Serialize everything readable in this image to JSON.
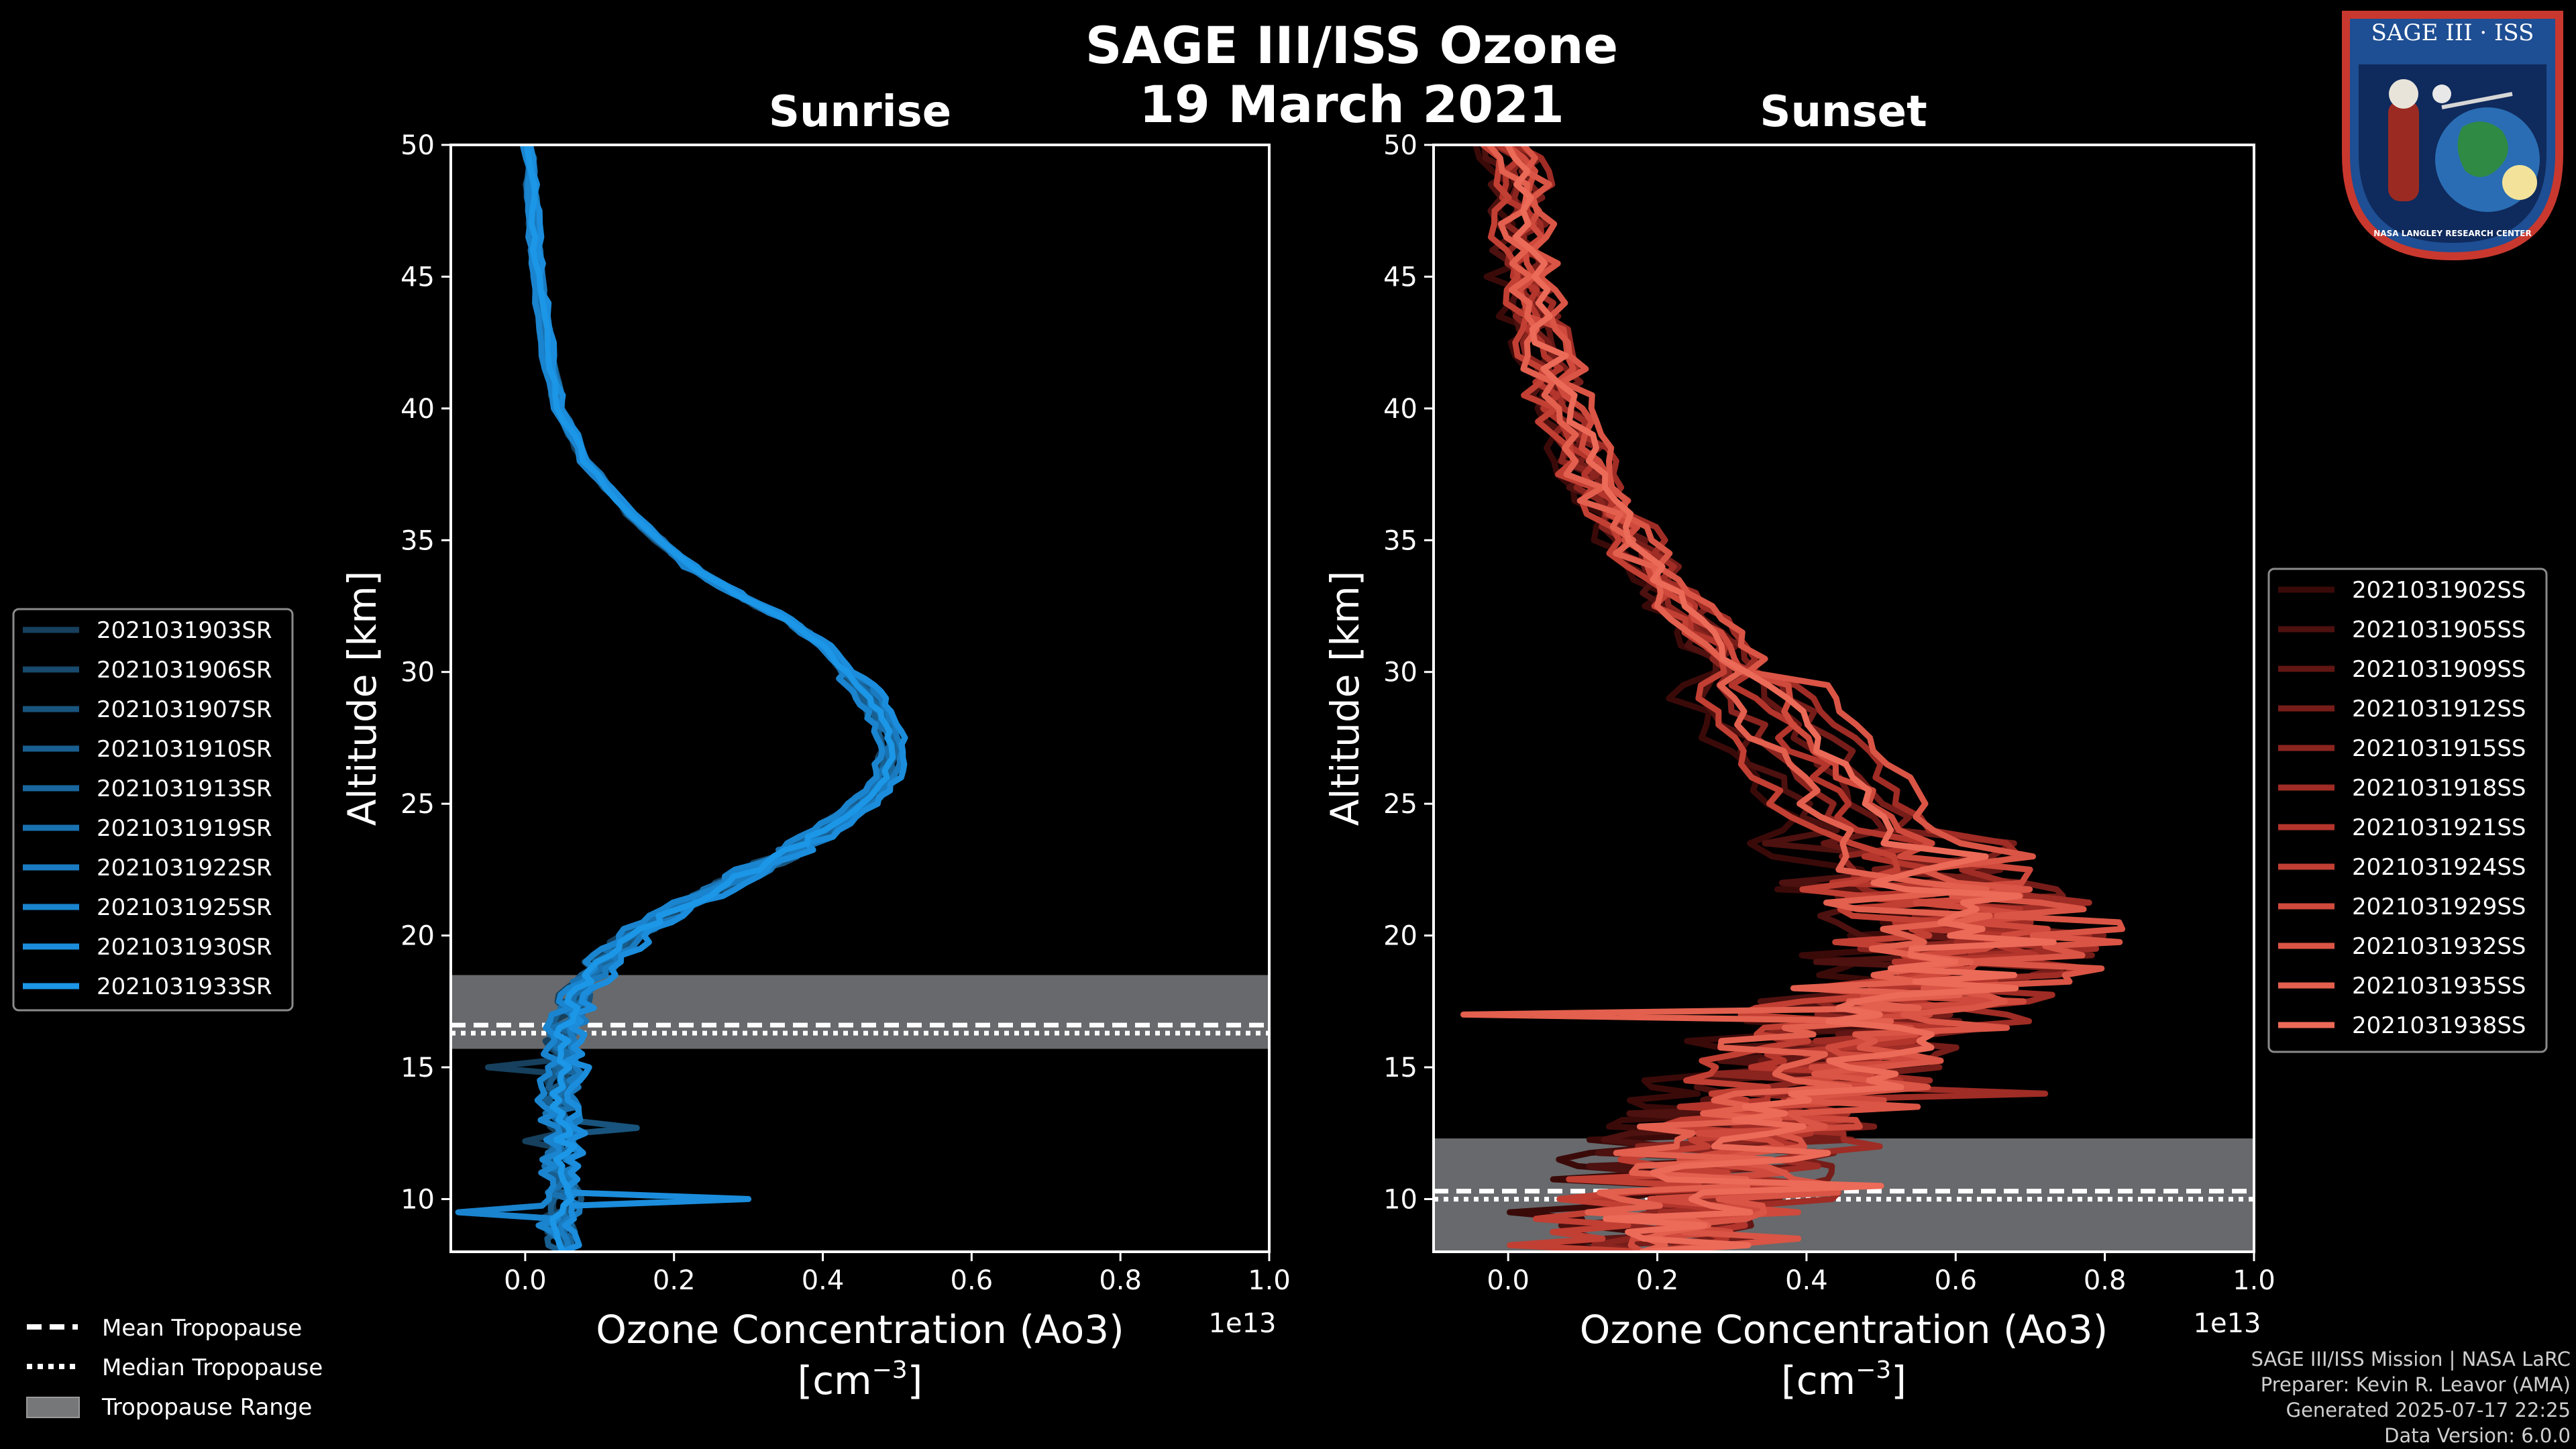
{
  "title_line1": "SAGE III/ISS Ozone",
  "title_line2": "19 March 2021",
  "logo": {
    "line1": "SAGE III",
    "line2": "ISS",
    "caption": "NASA LANGLEY RESEARCH CENTER"
  },
  "credits": [
    "SAGE III/ISS Mission | NASA LaRC",
    "Preparer: Kevin R. Leavor (AMA)",
    "Generated 2025-07-17 22:25",
    "Data Version: 6.0.0"
  ],
  "tropo_legend": [
    {
      "label": "Mean Tropopause",
      "style": "dashed"
    },
    {
      "label": "Median Tropopause",
      "style": "dotted"
    },
    {
      "label": "Tropopause Range",
      "style": "patch"
    }
  ],
  "chart_data": [
    {
      "type": "line",
      "title": "Sunrise",
      "xlabel": "Ozone Concentration (Ao3)",
      "xunit_prefix": "[cm",
      "xunit_exp": "−3",
      "xunit_suffix": "]",
      "ylabel": "Altitude [km]",
      "offset_label": "1e13",
      "xlim": [
        -0.1,
        1.0
      ],
      "ylim": [
        8,
        50
      ],
      "xticks": [
        "0.0",
        "0.2",
        "0.4",
        "0.6",
        "0.8",
        "1.0"
      ],
      "yticks": [
        "10",
        "15",
        "20",
        "25",
        "30",
        "35",
        "40",
        "45",
        "50"
      ],
      "tropopause": {
        "mean": 16.6,
        "median": 16.5,
        "range": [
          15.7,
          18.5
        ]
      },
      "base_profile": [
        [
          50,
          0.005
        ],
        [
          48,
          0.008
        ],
        [
          46,
          0.012
        ],
        [
          44,
          0.02
        ],
        [
          42,
          0.03
        ],
        [
          40,
          0.045
        ],
        [
          38,
          0.08
        ],
        [
          36,
          0.14
        ],
        [
          34,
          0.22
        ],
        [
          33,
          0.28
        ],
        [
          32,
          0.35
        ],
        [
          31,
          0.4
        ],
        [
          30,
          0.43
        ],
        [
          29,
          0.46
        ],
        [
          28,
          0.48
        ],
        [
          27,
          0.49
        ],
        [
          26,
          0.48
        ],
        [
          25,
          0.45
        ],
        [
          24,
          0.4
        ],
        [
          23,
          0.34
        ],
        [
          22,
          0.27
        ],
        [
          21,
          0.2
        ],
        [
          20,
          0.14
        ],
        [
          19,
          0.1
        ],
        [
          18,
          0.07
        ],
        [
          17,
          0.055
        ],
        [
          16,
          0.045
        ],
        [
          15,
          0.05
        ],
        [
          14,
          0.04
        ],
        [
          13,
          0.045
        ],
        [
          12,
          0.05
        ],
        [
          11,
          0.04
        ],
        [
          10,
          0.05
        ],
        [
          9,
          0.04
        ],
        [
          8,
          0.05
        ]
      ],
      "series": [
        {
          "name": "2021031903SR",
          "color": "#16405d",
          "shift": -0.01,
          "jitter": 0.01,
          "spikes": [
            [
              12.2,
              0.0
            ],
            [
              15.0,
              -0.05
            ]
          ]
        },
        {
          "name": "2021031906SR",
          "color": "#174a6c",
          "shift": 0.005,
          "jitter": 0.012,
          "spikes": []
        },
        {
          "name": "2021031907SR",
          "color": "#18547d",
          "shift": 0.012,
          "jitter": 0.012,
          "spikes": [
            [
              12.7,
              0.15
            ]
          ]
        },
        {
          "name": "2021031910SR",
          "color": "#185e8e",
          "shift": -0.005,
          "jitter": 0.01,
          "spikes": []
        },
        {
          "name": "2021031913SR",
          "color": "#19679e",
          "shift": 0.008,
          "jitter": 0.012,
          "spikes": []
        },
        {
          "name": "2021031919SR",
          "color": "#1971b0",
          "shift": 0.0,
          "jitter": 0.015,
          "spikes": [
            [
              13.5,
              0.07
            ]
          ]
        },
        {
          "name": "2021031922SR",
          "color": "#1a7bc0",
          "shift": 0.018,
          "jitter": 0.01,
          "spikes": []
        },
        {
          "name": "2021031925SR",
          "color": "#1a84cf",
          "shift": -0.012,
          "jitter": 0.012,
          "spikes": [
            [
              9.5,
              -0.09
            ]
          ]
        },
        {
          "name": "2021031930SR",
          "color": "#1b8ddc",
          "shift": 0.022,
          "jitter": 0.012,
          "spikes": [
            [
              10.0,
              0.3
            ]
          ]
        },
        {
          "name": "2021031933SR",
          "color": "#1c96e6",
          "shift": 0.004,
          "jitter": 0.01,
          "spikes": []
        }
      ]
    },
    {
      "type": "line",
      "title": "Sunset",
      "xlabel": "Ozone Concentration (Ao3)",
      "xunit_prefix": "[cm",
      "xunit_exp": "−3",
      "xunit_suffix": "]",
      "ylabel": "Altitude [km]",
      "offset_label": "1e13",
      "xlim": [
        -0.1,
        1.0
      ],
      "ylim": [
        8,
        50
      ],
      "xticks": [
        "0.0",
        "0.2",
        "0.4",
        "0.6",
        "0.8",
        "1.0"
      ],
      "yticks": [
        "10",
        "15",
        "20",
        "25",
        "30",
        "35",
        "40",
        "45",
        "50"
      ],
      "tropopause": {
        "mean": 10.3,
        "median": 10.2,
        "range": [
          8.0,
          12.3
        ]
      },
      "base_profile": [
        [
          50,
          0.01
        ],
        [
          48,
          0.015
        ],
        [
          46,
          0.02
        ],
        [
          44,
          0.03
        ],
        [
          42,
          0.05
        ],
        [
          40,
          0.07
        ],
        [
          38,
          0.1
        ],
        [
          36,
          0.14
        ],
        [
          34,
          0.19
        ],
        [
          32,
          0.25
        ],
        [
          30,
          0.31
        ],
        [
          28,
          0.36
        ],
        [
          26,
          0.42
        ],
        [
          24,
          0.48
        ],
        [
          22,
          0.55
        ],
        [
          21,
          0.6
        ],
        [
          20,
          0.62
        ],
        [
          19,
          0.6
        ],
        [
          18,
          0.55
        ],
        [
          17,
          0.5
        ],
        [
          16,
          0.45
        ],
        [
          15,
          0.42
        ],
        [
          14,
          0.38
        ],
        [
          13,
          0.34
        ],
        [
          12,
          0.3
        ],
        [
          11,
          0.27
        ],
        [
          10,
          0.24
        ],
        [
          9,
          0.2
        ],
        [
          8,
          0.18
        ]
      ],
      "series": [
        {
          "name": "2021031902SS",
          "color": "#3a0a09",
          "shift": -0.1,
          "jitter": 0.06,
          "spikes": []
        },
        {
          "name": "2021031905SS",
          "color": "#4d110f",
          "shift": -0.06,
          "jitter": 0.06,
          "spikes": []
        },
        {
          "name": "2021031909SS",
          "color": "#611614",
          "shift": 0.02,
          "jitter": 0.05,
          "spikes": []
        },
        {
          "name": "2021031912SS",
          "color": "#761d19",
          "shift": 0.05,
          "jitter": 0.06,
          "spikes": []
        },
        {
          "name": "2021031915SS",
          "color": "#8a241f",
          "shift": -0.03,
          "jitter": 0.05,
          "spikes": []
        },
        {
          "name": "2021031918SS",
          "color": "#9f2c25",
          "shift": 0.08,
          "jitter": 0.06,
          "spikes": [
            [
              14.0,
              0.72
            ]
          ]
        },
        {
          "name": "2021031921SS",
          "color": "#b3352c",
          "shift": 0.0,
          "jitter": 0.06,
          "spikes": []
        },
        {
          "name": "2021031924SS",
          "color": "#c23f33",
          "shift": -0.08,
          "jitter": 0.05,
          "spikes": []
        },
        {
          "name": "2021031929SS",
          "color": "#cf4a3c",
          "shift": 0.04,
          "jitter": 0.06,
          "spikes": [
            [
              18.0,
              0.68
            ]
          ]
        },
        {
          "name": "2021031932SS",
          "color": "#da5545",
          "shift": 0.1,
          "jitter": 0.05,
          "spikes": [
            [
              19.6,
              0.72
            ]
          ]
        },
        {
          "name": "2021031935SS",
          "color": "#e35f4e",
          "shift": -0.04,
          "jitter": 0.06,
          "spikes": [
            [
              17.0,
              -0.06
            ]
          ]
        },
        {
          "name": "2021031938SS",
          "color": "#ec6a58",
          "shift": 0.03,
          "jitter": 0.05,
          "spikes": [
            [
              10.5,
              0.5
            ]
          ]
        }
      ]
    }
  ]
}
